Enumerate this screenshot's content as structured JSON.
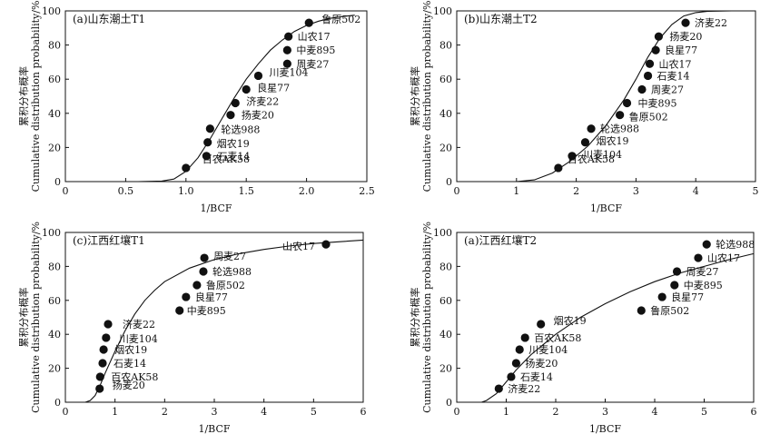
{
  "chart_data": [
    {
      "type": "scatter",
      "panel_label": "(a)山东潮土T1",
      "xlabel": "1/BCF",
      "ylabel_cn": "累积分布概率",
      "ylabel_en": "Cumulative distribution probability/%",
      "xlim": [
        0,
        2.5
      ],
      "ylim": [
        0,
        100
      ],
      "xticks": [
        "0",
        "0.5",
        "1.0",
        "1.5",
        "2.0",
        "2.5"
      ],
      "yticks": [
        "0",
        "20",
        "40",
        "60",
        "80",
        "100"
      ],
      "points": [
        {
          "label": "百农AK58",
          "x": 1.0,
          "y": 8
        },
        {
          "label": "石麦14",
          "x": 1.17,
          "y": 15
        },
        {
          "label": "烟农19",
          "x": 1.18,
          "y": 23
        },
        {
          "label": "轮选988",
          "x": 1.2,
          "y": 31
        },
        {
          "label": "扬麦20",
          "x": 1.37,
          "y": 39
        },
        {
          "label": "济麦22",
          "x": 1.41,
          "y": 46
        },
        {
          "label": "良星77",
          "x": 1.5,
          "y": 54
        },
        {
          "label": "川麦104",
          "x": 1.6,
          "y": 62
        },
        {
          "label": "周麦27",
          "x": 1.84,
          "y": 69
        },
        {
          "label": "中麦895",
          "x": 1.84,
          "y": 77
        },
        {
          "label": "山农17",
          "x": 1.85,
          "y": 85
        },
        {
          "label": "鲁原502",
          "x": 2.02,
          "y": 93
        }
      ],
      "curve": [
        [
          0,
          0
        ],
        [
          0.6,
          0
        ],
        [
          0.8,
          0.3
        ],
        [
          0.9,
          1.5
        ],
        [
          1.0,
          6
        ],
        [
          1.1,
          14
        ],
        [
          1.2,
          25
        ],
        [
          1.3,
          37
        ],
        [
          1.4,
          49
        ],
        [
          1.5,
          60
        ],
        [
          1.6,
          69
        ],
        [
          1.7,
          77
        ],
        [
          1.8,
          83
        ],
        [
          1.9,
          88
        ],
        [
          2.0,
          91.5
        ],
        [
          2.1,
          94
        ],
        [
          2.2,
          95.7
        ],
        [
          2.3,
          96.7
        ],
        [
          2.4,
          97.5
        ]
      ]
    },
    {
      "type": "scatter",
      "panel_label": "(b)山东潮土T2",
      "xlabel": "1/BCF",
      "ylabel_cn": "累积分布概率",
      "ylabel_en": "Cumulative distribution probability/%",
      "xlim": [
        0,
        5
      ],
      "ylim": [
        0,
        100
      ],
      "xticks": [
        "0",
        "1",
        "2",
        "3",
        "4",
        "5"
      ],
      "yticks": [
        "0",
        "20",
        "40",
        "60",
        "80",
        "100"
      ],
      "points": [
        {
          "label": "百农AK58",
          "x": 1.7,
          "y": 8
        },
        {
          "label": "川麦104",
          "x": 1.93,
          "y": 15
        },
        {
          "label": "烟农19",
          "x": 2.15,
          "y": 23
        },
        {
          "label": "轮选988",
          "x": 2.25,
          "y": 31
        },
        {
          "label": "鲁原502",
          "x": 2.73,
          "y": 39
        },
        {
          "label": "中麦895",
          "x": 2.85,
          "y": 46
        },
        {
          "label": "周麦27",
          "x": 3.1,
          "y": 54
        },
        {
          "label": "石麦14",
          "x": 3.2,
          "y": 62
        },
        {
          "label": "山农17",
          "x": 3.23,
          "y": 69
        },
        {
          "label": "良星77",
          "x": 3.33,
          "y": 77
        },
        {
          "label": "扬麦20",
          "x": 3.38,
          "y": 85
        },
        {
          "label": "济麦22",
          "x": 3.83,
          "y": 93
        }
      ],
      "curve": [
        [
          0,
          0
        ],
        [
          1.0,
          0
        ],
        [
          1.3,
          1
        ],
        [
          1.6,
          5
        ],
        [
          1.9,
          12
        ],
        [
          2.2,
          21
        ],
        [
          2.5,
          33
        ],
        [
          2.8,
          48
        ],
        [
          3.0,
          60
        ],
        [
          3.2,
          73
        ],
        [
          3.4,
          84
        ],
        [
          3.6,
          92
        ],
        [
          3.8,
          97
        ],
        [
          4.0,
          99
        ],
        [
          4.2,
          99.8
        ],
        [
          4.6,
          100
        ]
      ]
    },
    {
      "type": "scatter",
      "panel_label": "(c)江西红壤T1",
      "xlabel": "1/BCF",
      "ylabel_cn": "累积分布概率",
      "ylabel_en": "Cumulative distribution probability/%",
      "xlim": [
        0,
        6
      ],
      "ylim": [
        0,
        100
      ],
      "xticks": [
        "0",
        "1",
        "2",
        "3",
        "4",
        "5",
        "6"
      ],
      "yticks": [
        "0",
        "20",
        "40",
        "60",
        "80",
        "100"
      ],
      "points": [
        {
          "label": "扬麦20",
          "x": 0.69,
          "y": 8
        },
        {
          "label": "百农AK58",
          "x": 0.7,
          "y": 15
        },
        {
          "label": "石麦14",
          "x": 0.75,
          "y": 23
        },
        {
          "label": "烟农19",
          "x": 0.77,
          "y": 31
        },
        {
          "label": "川麦104",
          "x": 0.82,
          "y": 38
        },
        {
          "label": "济麦22",
          "x": 0.86,
          "y": 46
        },
        {
          "label": "中麦895",
          "x": 2.3,
          "y": 54
        },
        {
          "label": "良星77",
          "x": 2.43,
          "y": 62
        },
        {
          "label": "鲁原502",
          "x": 2.65,
          "y": 69
        },
        {
          "label": "轮选988",
          "x": 2.78,
          "y": 77
        },
        {
          "label": "周麦27",
          "x": 2.8,
          "y": 85
        },
        {
          "label": "山农17",
          "x": 5.25,
          "y": 93
        }
      ],
      "curve": [
        [
          0,
          0
        ],
        [
          0.4,
          0
        ],
        [
          0.5,
          1
        ],
        [
          0.6,
          4
        ],
        [
          0.7,
          10
        ],
        [
          0.8,
          17
        ],
        [
          1.0,
          30
        ],
        [
          1.2,
          42
        ],
        [
          1.4,
          52
        ],
        [
          1.6,
          60
        ],
        [
          1.8,
          66
        ],
        [
          2.0,
          71
        ],
        [
          2.5,
          79
        ],
        [
          3.0,
          84
        ],
        [
          3.5,
          87.5
        ],
        [
          4.0,
          90
        ],
        [
          4.5,
          92
        ],
        [
          5.0,
          93.5
        ],
        [
          5.5,
          94.5
        ],
        [
          6.0,
          95.5
        ]
      ]
    },
    {
      "type": "scatter",
      "panel_label": "(a)江西红壤T2",
      "xlabel": "1/BCF",
      "ylabel_cn": "累积分布概率",
      "ylabel_en": "Cumulative distribution probability/%",
      "xlim": [
        0,
        6
      ],
      "ylim": [
        0,
        100
      ],
      "xticks": [
        "0",
        "1",
        "2",
        "3",
        "4",
        "5",
        "6"
      ],
      "yticks": [
        "0",
        "20",
        "40",
        "60",
        "80",
        "100"
      ],
      "points": [
        {
          "label": "济麦22",
          "x": 0.85,
          "y": 8
        },
        {
          "label": "石麦14",
          "x": 1.1,
          "y": 15
        },
        {
          "label": "扬麦20",
          "x": 1.2,
          "y": 23
        },
        {
          "label": "川麦104",
          "x": 1.27,
          "y": 31
        },
        {
          "label": "百农AK58",
          "x": 1.38,
          "y": 38
        },
        {
          "label": "烟农19",
          "x": 1.7,
          "y": 46
        },
        {
          "label": "鲁原502",
          "x": 3.73,
          "y": 54
        },
        {
          "label": "良星77",
          "x": 4.15,
          "y": 62
        },
        {
          "label": "中麦895",
          "x": 4.4,
          "y": 69
        },
        {
          "label": "周麦27",
          "x": 4.45,
          "y": 77
        },
        {
          "label": "山农17",
          "x": 4.88,
          "y": 85
        },
        {
          "label": "轮选988",
          "x": 5.05,
          "y": 93
        }
      ],
      "curve": [
        [
          0,
          0
        ],
        [
          0.5,
          0
        ],
        [
          0.6,
          1
        ],
        [
          0.8,
          5
        ],
        [
          1.0,
          12
        ],
        [
          1.2,
          19
        ],
        [
          1.5,
          28
        ],
        [
          2.0,
          40
        ],
        [
          2.5,
          50
        ],
        [
          3.0,
          58
        ],
        [
          3.5,
          65
        ],
        [
          4.0,
          71
        ],
        [
          4.5,
          76
        ],
        [
          5.0,
          80
        ],
        [
          5.5,
          84
        ],
        [
          6.0,
          87.5
        ]
      ]
    }
  ]
}
